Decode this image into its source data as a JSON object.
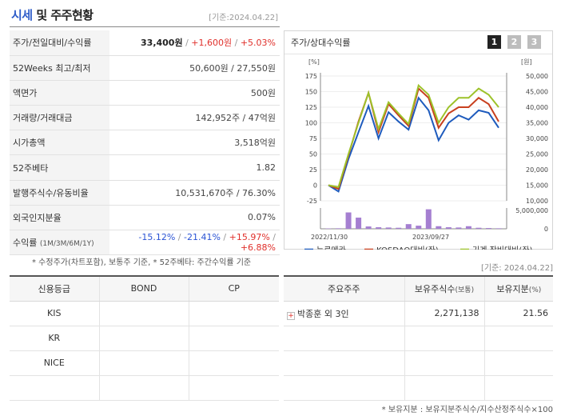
{
  "header": {
    "title_blue": "시세",
    "title_rest": " 및 주주현황",
    "date": "[기준:2024.04.22]"
  },
  "stock_rows": [
    {
      "label": "주가/전일대비/수익률"
    },
    {
      "label": "52Weeks 최고/최저",
      "value": "50,600원 / 27,550원"
    },
    {
      "label": "액면가",
      "value": "500원"
    },
    {
      "label": "거래량/거래대금",
      "value": "142,952주 / 47억원"
    },
    {
      "label": "시가총액",
      "value": "3,518억원"
    },
    {
      "label": "52주베타",
      "value": "1.82"
    },
    {
      "label": "발행주식수/유동비율",
      "value": "10,531,670주 / 76.30%"
    },
    {
      "label": "외국인지분율",
      "value": "0.07%"
    },
    {
      "label": "수익률",
      "label_small": "(1M/3M/6M/1Y)"
    }
  ],
  "price": {
    "price": "33,400원",
    "change": "+1,600원",
    "rate": "+5.03%",
    "sep": " / "
  },
  "returns": {
    "m1": "-15.12%",
    "m3": "-21.41%",
    "m6": "+15.97%",
    "y1": "+6.88%"
  },
  "note1": "* 수정주가(차트포함), 보통주 기준, * 52주베타: 주간수익률 기준",
  "chart": {
    "title": "주가/상대수익률",
    "pages": [
      "1",
      "2",
      "3"
    ],
    "active_page": 0,
    "unit_left": "[%]",
    "unit_right": "[원]",
    "y_left_ticks": [
      "175",
      "150",
      "125",
      "100",
      "75",
      "50",
      "25",
      "0",
      "-25"
    ],
    "y_right_ticks": [
      "50,000",
      "45,000",
      "40,000",
      "35,000",
      "30,000",
      "25,000",
      "20,000",
      "15,000",
      "10,000"
    ],
    "vol_tick": "5,000,000",
    "vol_zero": "0",
    "x_labels": [
      "2022/11/30",
      "2023/09/27"
    ],
    "legend": [
      {
        "label": "뉴로메카",
        "color": "#1e5bbd"
      },
      {
        "label": "KOSDAQ대비(좌)",
        "color": "#c8401f"
      },
      {
        "label": "기계,장비대비(좌)",
        "color": "#9dc22a"
      },
      {
        "label": "거래량",
        "color": "#a57fd1"
      }
    ]
  },
  "chart_data": {
    "type": "line",
    "title": "주가/상대수익률",
    "ylabel": "[%]",
    "ylabel_right": "[원]",
    "ylim": [
      -25,
      175
    ],
    "ylim_right": [
      10000,
      50000
    ],
    "x_tick_labels": [
      "2022/11/30",
      "2023/09/27"
    ],
    "series": [
      {
        "name": "뉴로메카",
        "axis": "left",
        "values": [
          0,
          -10,
          42,
          85,
          127,
          75,
          117,
          102,
          89,
          140,
          120,
          72,
          100,
          112,
          105,
          120,
          116,
          92
        ]
      },
      {
        "name": "KOSDAQ대비(좌)",
        "axis": "left",
        "values": [
          0,
          -6,
          48,
          102,
          148,
          85,
          130,
          112,
          95,
          155,
          140,
          92,
          115,
          125,
          125,
          140,
          130,
          102
        ]
      },
      {
        "name": "기계,장비대비(좌)",
        "axis": "left",
        "values": [
          0,
          -3,
          50,
          100,
          148,
          90,
          133,
          115,
          98,
          160,
          145,
          100,
          125,
          140,
          140,
          155,
          145,
          125
        ]
      },
      {
        "name": "거래량",
        "type": "bar",
        "unit": "주",
        "values": [
          150000,
          200000,
          6300000,
          4300000,
          900000,
          600000,
          500000,
          400000,
          1800000,
          1200000,
          7500000,
          1000000,
          600000,
          500000,
          1000000,
          400000,
          300000,
          200000
        ]
      }
    ]
  },
  "date2": "[기준: 2024.04.22]",
  "credit": {
    "headers": [
      "신용등급",
      "BOND",
      "CP"
    ],
    "rows": [
      [
        "KIS",
        "",
        ""
      ],
      [
        "KR",
        "",
        ""
      ],
      [
        "NICE",
        "",
        ""
      ],
      [
        "",
        "",
        ""
      ]
    ]
  },
  "holders": {
    "headers": [
      "주요주주",
      "보유주식수",
      "(보통)",
      "보유지분",
      "(%)"
    ],
    "rows": [
      {
        "name": "박종훈 외 3인",
        "shares": "2,271,138",
        "pct": "21.56"
      },
      {
        "name": "",
        "shares": "",
        "pct": ""
      },
      {
        "name": "",
        "shares": "",
        "pct": ""
      },
      {
        "name": "",
        "shares": "",
        "pct": ""
      }
    ],
    "plus_icon": "+"
  },
  "note2": "* 보유지분 : 보유지분주식수/지수산정주식수×100"
}
